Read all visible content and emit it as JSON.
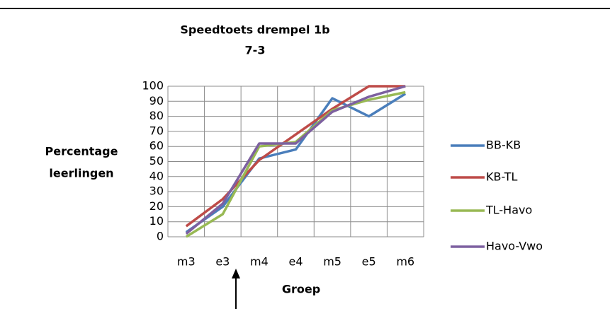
{
  "chart_data": {
    "type": "line",
    "title": "Speedtoets drempel 1b",
    "subtitle": "7-3",
    "y_label": [
      "Percentage",
      "leerlingen"
    ],
    "x_label": "Groep",
    "categories": [
      "m3",
      "e3",
      "m4",
      "e4",
      "m5",
      "e5",
      "m6"
    ],
    "series": [
      {
        "name": "BB-KB",
        "color": "#4a7ebb",
        "values": [
          3,
          20,
          52,
          58,
          92,
          80,
          95
        ]
      },
      {
        "name": "KB-TL",
        "color": "#be4b48",
        "values": [
          7,
          25,
          51,
          68,
          85,
          100,
          100
        ]
      },
      {
        "name": "TL-Havo",
        "color": "#98b954",
        "values": [
          0,
          15,
          60,
          63,
          84,
          91,
          96
        ]
      },
      {
        "name": "Havo-Vwo",
        "color": "#7d60a0",
        "values": [
          2,
          22,
          62,
          62,
          83,
          93,
          100
        ]
      }
    ],
    "ylim": [
      0,
      100
    ],
    "yticks": [
      0,
      10,
      20,
      30,
      40,
      50,
      60,
      70,
      80,
      90,
      100
    ],
    "grid": true,
    "legend": "right"
  }
}
